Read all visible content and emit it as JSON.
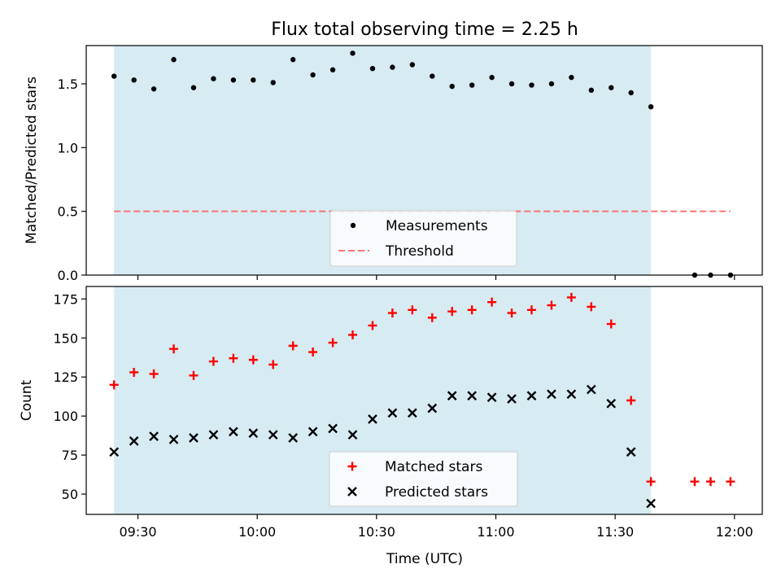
{
  "chart_data": {
    "title": "Flux total observing time = 2.25 h",
    "xlabel": "Time (UTC)",
    "x_ticks": [
      "09:30",
      "10:00",
      "10:30",
      "11:00",
      "11:30",
      "12:00"
    ],
    "x_tick_values": [
      "09:30",
      "10:00",
      "10:30",
      "11:00",
      "11:30",
      "12:00"
    ],
    "xlim": [
      "09:17",
      "12:07"
    ],
    "shaded_span": [
      "09:24",
      "11:39"
    ],
    "shade_color": "#add8e6",
    "panels": [
      {
        "type": "scatter",
        "ylabel": "Matched/Predicted stars",
        "ylim": [
          0,
          1.8
        ],
        "y_ticks": [
          0.0,
          0.5,
          1.0,
          1.5
        ],
        "y_tick_labels": [
          "0.0",
          "0.5",
          "1.0",
          "1.5"
        ],
        "legend_position": "lower center",
        "series": [
          {
            "name": "Measurements",
            "marker": "dot",
            "color": "#000000",
            "points": [
              [
                "09:24",
                1.56
              ],
              [
                "09:29",
                1.53
              ],
              [
                "09:34",
                1.46
              ],
              [
                "09:39",
                1.69
              ],
              [
                "09:44",
                1.47
              ],
              [
                "09:49",
                1.54
              ],
              [
                "09:54",
                1.53
              ],
              [
                "09:59",
                1.53
              ],
              [
                "10:04",
                1.51
              ],
              [
                "10:09",
                1.69
              ],
              [
                "10:14",
                1.57
              ],
              [
                "10:19",
                1.61
              ],
              [
                "10:24",
                1.74
              ],
              [
                "10:29",
                1.62
              ],
              [
                "10:34",
                1.63
              ],
              [
                "10:39",
                1.65
              ],
              [
                "10:44",
                1.56
              ],
              [
                "10:49",
                1.48
              ],
              [
                "10:54",
                1.49
              ],
              [
                "10:59",
                1.55
              ],
              [
                "11:04",
                1.5
              ],
              [
                "11:09",
                1.49
              ],
              [
                "11:14",
                1.5
              ],
              [
                "11:19",
                1.55
              ],
              [
                "11:24",
                1.45
              ],
              [
                "11:29",
                1.47
              ],
              [
                "11:34",
                1.43
              ],
              [
                "11:39",
                1.32
              ],
              [
                "11:50",
                0.0
              ],
              [
                "11:54",
                0.0
              ],
              [
                "11:59",
                0.0
              ]
            ]
          },
          {
            "name": "Threshold",
            "type": "line",
            "dashed": true,
            "color": "#ff6666",
            "points": [
              [
                "09:24",
                0.5
              ],
              [
                "11:59",
                0.5
              ]
            ]
          }
        ]
      },
      {
        "type": "scatter",
        "ylabel": "Count",
        "ylim": [
          37,
          183
        ],
        "y_ticks": [
          50,
          75,
          100,
          125,
          150,
          175
        ],
        "y_tick_labels": [
          "50",
          "75",
          "100",
          "125",
          "150",
          "175"
        ],
        "legend_position": "lower center",
        "series": [
          {
            "name": "Matched stars",
            "marker": "plus",
            "color": "#ff0000",
            "points": [
              [
                "09:24",
                120
              ],
              [
                "09:29",
                128
              ],
              [
                "09:34",
                127
              ],
              [
                "09:39",
                143
              ],
              [
                "09:44",
                126
              ],
              [
                "09:49",
                135
              ],
              [
                "09:54",
                137
              ],
              [
                "09:59",
                136
              ],
              [
                "10:04",
                133
              ],
              [
                "10:09",
                145
              ],
              [
                "10:14",
                141
              ],
              [
                "10:19",
                147
              ],
              [
                "10:24",
                152
              ],
              [
                "10:29",
                158
              ],
              [
                "10:34",
                166
              ],
              [
                "10:39",
                168
              ],
              [
                "10:44",
                163
              ],
              [
                "10:49",
                167
              ],
              [
                "10:54",
                168
              ],
              [
                "10:59",
                173
              ],
              [
                "11:04",
                166
              ],
              [
                "11:09",
                168
              ],
              [
                "11:14",
                171
              ],
              [
                "11:19",
                176
              ],
              [
                "11:24",
                170
              ],
              [
                "11:29",
                159
              ],
              [
                "11:34",
                110
              ],
              [
                "11:39",
                58
              ],
              [
                "11:50",
                58
              ],
              [
                "11:54",
                58
              ],
              [
                "11:59",
                58
              ]
            ]
          },
          {
            "name": "Predicted stars",
            "marker": "x",
            "color": "#000000",
            "points": [
              [
                "09:24",
                77
              ],
              [
                "09:29",
                84
              ],
              [
                "09:34",
                87
              ],
              [
                "09:39",
                85
              ],
              [
                "09:44",
                86
              ],
              [
                "09:49",
                88
              ],
              [
                "09:54",
                90
              ],
              [
                "09:59",
                89
              ],
              [
                "10:04",
                88
              ],
              [
                "10:09",
                86
              ],
              [
                "10:14",
                90
              ],
              [
                "10:19",
                92
              ],
              [
                "10:24",
                88
              ],
              [
                "10:29",
                98
              ],
              [
                "10:34",
                102
              ],
              [
                "10:39",
                102
              ],
              [
                "10:44",
                105
              ],
              [
                "10:49",
                113
              ],
              [
                "10:54",
                113
              ],
              [
                "10:59",
                112
              ],
              [
                "11:04",
                111
              ],
              [
                "11:09",
                113
              ],
              [
                "11:14",
                114
              ],
              [
                "11:19",
                114
              ],
              [
                "11:24",
                117
              ],
              [
                "11:29",
                108
              ],
              [
                "11:34",
                77
              ],
              [
                "11:39",
                44
              ]
            ]
          }
        ]
      }
    ]
  }
}
